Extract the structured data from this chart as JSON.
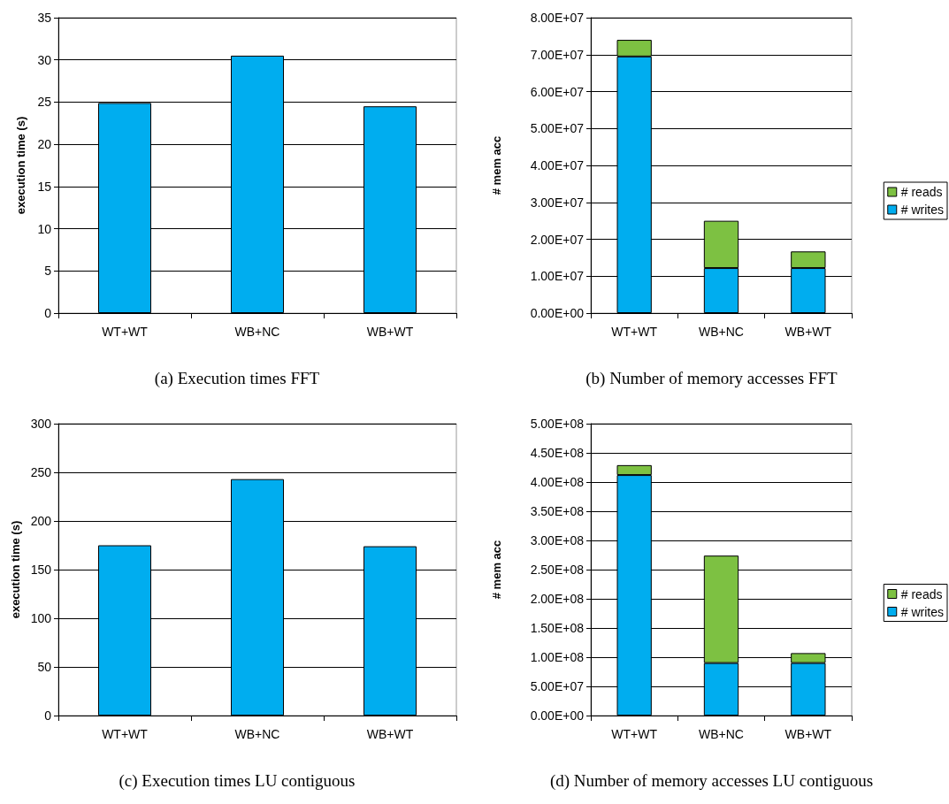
{
  "chart_data": [
    {
      "type": "bar",
      "title": "(a) Execution times FFT",
      "ylabel": "execution time (s)",
      "categories": [
        "WT+WT",
        "WB+NC",
        "WB+WT"
      ],
      "values": [
        24.9,
        30.5,
        24.5
      ],
      "color": "#00adef",
      "ylim": [
        0,
        35
      ],
      "yticks": [
        0,
        5,
        10,
        15,
        20,
        25,
        30,
        35
      ],
      "grid": "y",
      "legend": false
    },
    {
      "type": "bar",
      "title": "(b) Number of memory accesses FFT",
      "ylabel": "# mem acc",
      "categories": [
        "WT+WT",
        "WB+NC",
        "WB+WT"
      ],
      "stacked": true,
      "series": [
        {
          "name": "# writes",
          "color": "#00adef",
          "values": [
            69500000,
            12200000,
            12200000
          ]
        },
        {
          "name": "# reads",
          "color": "#7dc142",
          "values": [
            4500000,
            12800000,
            4500000
          ]
        }
      ],
      "ylim": [
        0,
        80000000
      ],
      "yticks": [
        {
          "value": 0,
          "label": "0.00E+00"
        },
        {
          "value": 10000000,
          "label": "1.00E+07"
        },
        {
          "value": 20000000,
          "label": "2.00E+07"
        },
        {
          "value": 30000000,
          "label": "3.00E+07"
        },
        {
          "value": 40000000,
          "label": "4.00E+07"
        },
        {
          "value": 50000000,
          "label": "5.00E+07"
        },
        {
          "value": 60000000,
          "label": "6.00E+07"
        },
        {
          "value": 70000000,
          "label": "7.00E+07"
        },
        {
          "value": 80000000,
          "label": "8.00E+07"
        }
      ],
      "grid": "y",
      "legend": "right"
    },
    {
      "type": "bar",
      "title": "(c) Execution times LU contiguous",
      "ylabel": "execution time (s)",
      "categories": [
        "WT+WT",
        "WB+NC",
        "WB+WT"
      ],
      "values": [
        175,
        243,
        174
      ],
      "color": "#00adef",
      "ylim": [
        0,
        300
      ],
      "yticks": [
        0,
        50,
        100,
        150,
        200,
        250,
        300
      ],
      "grid": "y",
      "legend": false
    },
    {
      "type": "bar",
      "title": "(d) Number of memory accesses LU contiguous",
      "ylabel": "# mem acc",
      "categories": [
        "WT+WT",
        "WB+NC",
        "WB+WT"
      ],
      "stacked": true,
      "series": [
        {
          "name": "# writes",
          "color": "#00adef",
          "values": [
            412000000,
            90000000,
            90000000
          ]
        },
        {
          "name": "# reads",
          "color": "#7dc142",
          "values": [
            17000000,
            184000000,
            17000000
          ]
        }
      ],
      "ylim": [
        0,
        500000000
      ],
      "yticks": [
        {
          "value": 0,
          "label": "0.00E+00"
        },
        {
          "value": 50000000,
          "label": "5.00E+07"
        },
        {
          "value": 100000000,
          "label": "1.00E+08"
        },
        {
          "value": 150000000,
          "label": "1.50E+08"
        },
        {
          "value": 200000000,
          "label": "2.00E+08"
        },
        {
          "value": 250000000,
          "label": "2.50E+08"
        },
        {
          "value": 300000000,
          "label": "3.00E+08"
        },
        {
          "value": 350000000,
          "label": "3.50E+08"
        },
        {
          "value": 400000000,
          "label": "4.00E+08"
        },
        {
          "value": 450000000,
          "label": "4.50E+08"
        },
        {
          "value": 500000000,
          "label": "5.00E+08"
        }
      ],
      "grid": "y",
      "legend": "right"
    }
  ]
}
